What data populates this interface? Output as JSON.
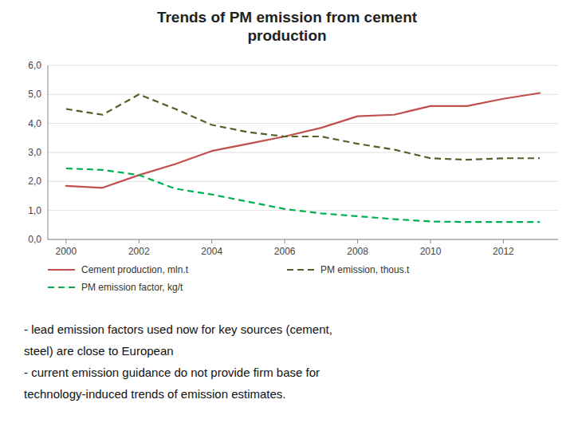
{
  "chart_data": {
    "type": "line",
    "title": "Trends of PM emission from cement\nproduction",
    "x": [
      2000,
      2001,
      2002,
      2003,
      2004,
      2005,
      2006,
      2007,
      2008,
      2009,
      2010,
      2011,
      2012,
      2013
    ],
    "series": [
      {
        "name": "Cement production, mln.t",
        "color": "#c0504d",
        "line_style": "solid",
        "values": [
          1.85,
          1.78,
          2.22,
          2.6,
          3.05,
          3.3,
          3.55,
          3.85,
          4.25,
          4.3,
          4.6,
          4.6,
          4.85,
          5.05
        ]
      },
      {
        "name": "PM emission, thous.t",
        "color": "#4f6228",
        "line_style": "dashed",
        "values": [
          4.5,
          4.3,
          5.0,
          4.5,
          3.95,
          3.7,
          3.55,
          3.55,
          3.3,
          3.1,
          2.8,
          2.75,
          2.8,
          2.8
        ]
      },
      {
        "name": "PM emission factor, kg/t",
        "color": "#00b050",
        "line_style": "dashed",
        "values": [
          2.45,
          2.4,
          2.22,
          1.75,
          1.55,
          1.3,
          1.05,
          0.9,
          0.8,
          0.7,
          0.62,
          0.6,
          0.6,
          0.6
        ]
      }
    ],
    "xlim": [
      1999.5,
      2013.5
    ],
    "xticks": [
      2000,
      2002,
      2004,
      2006,
      2008,
      2010,
      2012
    ],
    "ylim": [
      0,
      6.0
    ],
    "yticks": [
      {
        "value": 0.0,
        "label": "0,0"
      },
      {
        "value": 1.0,
        "label": "1,0"
      },
      {
        "value": 2.0,
        "label": "2,0"
      },
      {
        "value": 3.0,
        "label": "3,0"
      },
      {
        "value": 4.0,
        "label": "4,0"
      },
      {
        "value": 5.0,
        "label": "5,0"
      },
      {
        "value": 6.0,
        "label": "6,0"
      }
    ],
    "grid": true,
    "legend": "bottom",
    "annotations": [
      "- lead emission factors used now for key sources (cement,",
      "steel) are close to European",
      "- current emission guidance do not provide firm base for",
      "technology-induced trends of emission estimates."
    ]
  }
}
